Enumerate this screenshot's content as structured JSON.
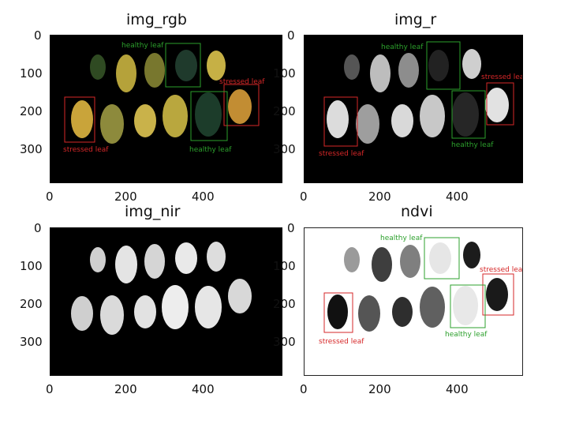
{
  "panels": [
    {
      "id": "rgb",
      "title": "img_rgb",
      "x_ticks": [
        "0",
        "200",
        "400"
      ],
      "y_ticks": [
        "0",
        "100",
        "200",
        "300"
      ],
      "annotations": [
        {
          "label": "healthy leaf",
          "color": "#2ca02c"
        },
        {
          "label": "stressed leaf",
          "color": "#d62728"
        },
        {
          "label": "stressed leaf",
          "color": "#d62728"
        },
        {
          "label": "healthy leaf",
          "color": "#2ca02c"
        }
      ]
    },
    {
      "id": "r",
      "title": "img_r",
      "x_ticks": [
        "0",
        "200",
        "400"
      ],
      "y_ticks": [
        "0",
        "100",
        "200",
        "300"
      ],
      "annotations": [
        {
          "label": "healthy leaf",
          "color": "#2ca02c"
        },
        {
          "label": "stressed leaf",
          "color": "#d62728"
        },
        {
          "label": "stressed leaf",
          "color": "#d62728"
        },
        {
          "label": "healthy leaf",
          "color": "#2ca02c"
        }
      ]
    },
    {
      "id": "nir",
      "title": "img_nir",
      "x_ticks": [
        "0",
        "200",
        "400"
      ],
      "y_ticks": [
        "0",
        "100",
        "200",
        "300"
      ],
      "annotations": []
    },
    {
      "id": "ndvi",
      "title": "ndvi",
      "x_ticks": [
        "0",
        "200",
        "400"
      ],
      "y_ticks": [
        "0",
        "100",
        "200",
        "300"
      ],
      "annotations": [
        {
          "label": "healthy leaf",
          "color": "#2ca02c"
        },
        {
          "label": "stressed leaf",
          "color": "#d62728"
        },
        {
          "label": "stressed leaf",
          "color": "#d62728"
        },
        {
          "label": "healthy leaf",
          "color": "#2ca02c"
        }
      ]
    }
  ]
}
